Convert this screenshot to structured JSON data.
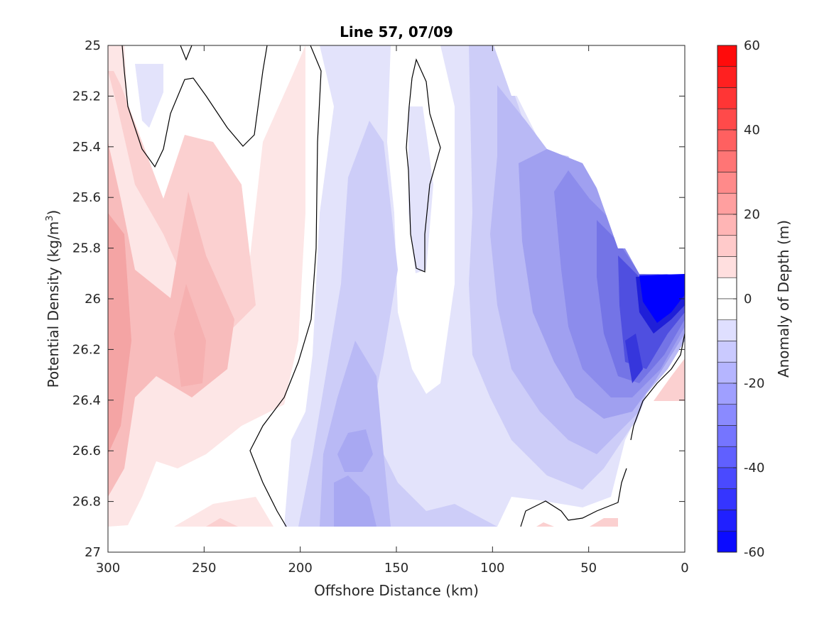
{
  "chart_data": {
    "type": "heatmap",
    "subtype": "filled-contour",
    "title": "Line 57, 07/09",
    "xlabel": "Offshore Distance (km)",
    "ylabel": "Potential Density (kg/m",
    "ylabel_sup": "3",
    "ylabel_end": ")",
    "x_reversed": true,
    "xlim": [
      300,
      0
    ],
    "ylim": [
      25,
      27
    ],
    "y_reversed": true,
    "xticks": [
      "300",
      "250",
      "200",
      "150",
      "100",
      "50",
      "0"
    ],
    "yticks": [
      "25",
      "25.2",
      "25.4",
      "25.6",
      "25.8",
      "26",
      "26.2",
      "26.4",
      "26.6",
      "26.8",
      "27"
    ],
    "colorbar": {
      "label": "Anomaly of Depth (m)",
      "range": [
        -60,
        60
      ],
      "step": 5,
      "ticks": [
        "60",
        "40",
        "20",
        "0",
        "-20",
        "-40",
        "-60"
      ],
      "colormap": "blue-white-red",
      "position": "right"
    },
    "zero_contour_lines": true,
    "grid": false
  }
}
